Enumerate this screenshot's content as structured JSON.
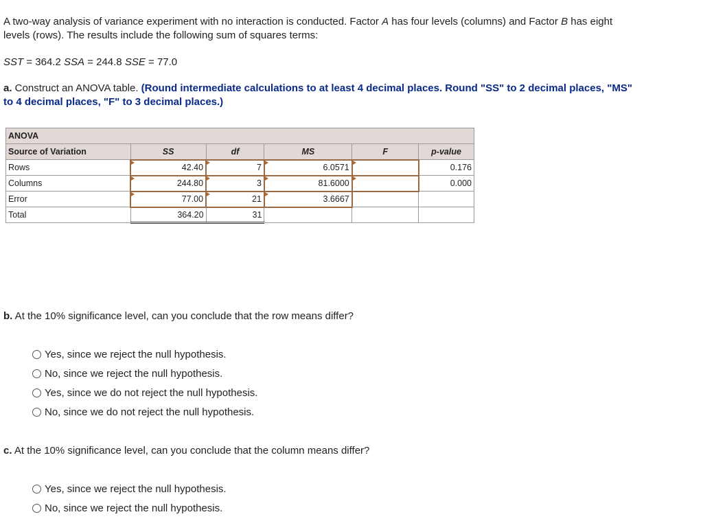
{
  "intro": {
    "line1_a": "A two-way analysis of variance experiment with no interaction is conducted. Factor ",
    "factor_a": "A",
    "line1_b": " has four levels (columns) and Factor ",
    "factor_b": "B",
    "line1_c": " has eight",
    "line2": "levels (rows). The results include the following sum of squares terms:"
  },
  "sums": {
    "sst_label": "SST",
    "sst": " = 364.2 ",
    "ssa_label": "SSA",
    "ssa": " = 244.8 ",
    "sse_label": "SSE",
    "sse": " = 77.0"
  },
  "part_a": {
    "label": "a.",
    "text": " Construct an ANOVA table. ",
    "instr1": "(Round intermediate calculations to at least 4 decimal places. Round \"SS\" to 2 decimal places, \"MS\"",
    "instr2": "to 4 decimal places, \"F\" to 3 decimal places.)"
  },
  "table": {
    "title": "ANOVA",
    "headers": [
      "Source of Variation",
      "SS",
      "df",
      "MS",
      "F",
      "p-value"
    ],
    "rows": [
      {
        "source": "Rows",
        "ss": "42.40",
        "df": "7",
        "ms": "6.0571",
        "f": "",
        "p": "0.176"
      },
      {
        "source": "Columns",
        "ss": "244.80",
        "df": "3",
        "ms": "81.6000",
        "f": "",
        "p": "0.000"
      },
      {
        "source": "Error",
        "ss": "77.00",
        "df": "21",
        "ms": "3.6667",
        "f": "",
        "p": ""
      },
      {
        "source": "Total",
        "ss": "364.20",
        "df": "31",
        "ms": "",
        "f": "",
        "p": ""
      }
    ]
  },
  "part_b": {
    "label": "b.",
    "text": " At the 10% significance level, can you conclude that the row means differ?",
    "options": [
      "Yes, since we reject the null hypothesis.",
      "No, since we reject the null hypothesis.",
      "Yes, since we do not reject the null hypothesis.",
      "No, since we do not reject the null hypothesis."
    ]
  },
  "part_c": {
    "label": "c.",
    "text": " At the 10% significance level, can you conclude that the column means differ?",
    "options": [
      "Yes, since we reject the null hypothesis.",
      "No, since we reject the null hypothesis."
    ]
  }
}
